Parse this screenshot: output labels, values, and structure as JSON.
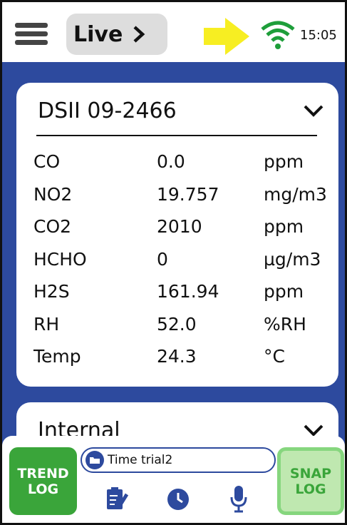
{
  "header": {
    "mode": "Live",
    "time": "15:05"
  },
  "device_card": {
    "title": "DSII 09-2466",
    "readings": [
      {
        "name": "CO",
        "value": "0.0",
        "unit": "ppm"
      },
      {
        "name": "NO2",
        "value": "19.757",
        "unit": "mg/m3"
      },
      {
        "name": "CO2",
        "value": "2010",
        "unit": "ppm"
      },
      {
        "name": "HCHO",
        "value": "0",
        "unit": "µg/m3"
      },
      {
        "name": "H2S",
        "value": "161.94",
        "unit": "ppm"
      },
      {
        "name": "RH",
        "value": "52.0",
        "unit": "%RH"
      },
      {
        "name": "Temp",
        "value": "24.3",
        "unit": "°C"
      }
    ]
  },
  "internal_card": {
    "title": "Internal"
  },
  "footer": {
    "trend_log": "TREND LOG",
    "file_name": "Time trial2",
    "snap_log": "SNAP LOG"
  }
}
